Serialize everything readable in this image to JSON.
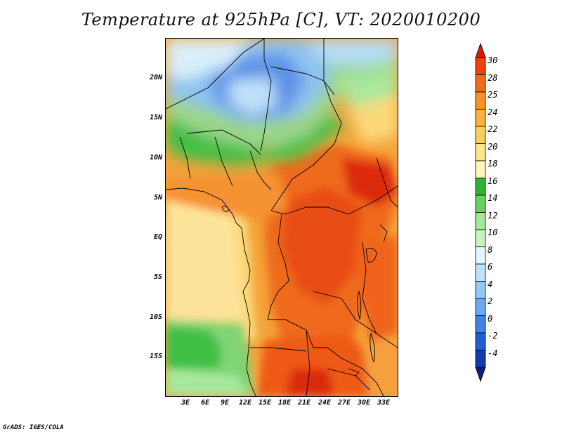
{
  "title": "Temperature at 925hPa [C], VT: 2020010200",
  "credit": "GrADS: IGES/COLA",
  "lat_labels": [
    "20N",
    "15N",
    "10N",
    "5N",
    "EQ",
    "5S",
    "10S",
    "15S"
  ],
  "lon_labels": [
    "3E",
    "6E",
    "9E",
    "12E",
    "15E",
    "18E",
    "21E",
    "24E",
    "27E",
    "30E",
    "33E"
  ],
  "colorbar": {
    "labels": [
      "30",
      "28",
      "25",
      "24",
      "22",
      "20",
      "18",
      "16",
      "14",
      "12",
      "10",
      "8",
      "6",
      "4",
      "2",
      "0",
      "-2",
      "-4"
    ],
    "colors": [
      "#dc1a06",
      "#f0410f",
      "#f36a17",
      "#f7921f",
      "#fab13d",
      "#fcce5c",
      "#fde58a",
      "#fdf7b8",
      "#2db52f",
      "#68d25f",
      "#a2e898",
      "#c6f3c1",
      "#e2f7fb",
      "#bde3fa",
      "#93c8f6",
      "#6aa9ef",
      "#3f84e4",
      "#1c60d4",
      "#0f3db0",
      "#0b1f7a"
    ]
  },
  "icons": {
    "top_arrow": "triangle-up-icon",
    "bottom_arrow": "triangle-down-icon"
  }
}
